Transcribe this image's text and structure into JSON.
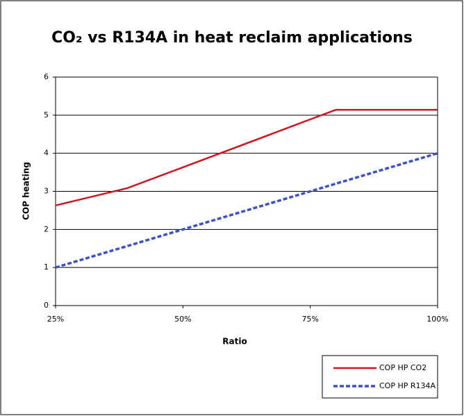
{
  "chart_data": {
    "type": "line",
    "title": "CO₂ vs R134A in heat reclaim applications",
    "x_label": "Ratio",
    "y_label": "COP heating",
    "x": [
      25,
      39,
      50,
      75,
      80,
      100
    ],
    "series": [
      {
        "name": "COP HP CO2",
        "color": "#d0141e",
        "dash": false,
        "values": [
          2.63,
          3.08,
          3.63,
          4.89,
          5.14,
          5.14
        ]
      },
      {
        "name": "COP HP R134A",
        "color": "#3c50c8",
        "dash": true,
        "values": [
          1,
          1.56,
          2,
          3,
          3.2,
          4
        ]
      }
    ],
    "xlim": [
      25,
      100
    ],
    "xticks": [
      {
        "value": 25,
        "label": "25%"
      },
      {
        "value": 50,
        "label": "50%"
      },
      {
        "value": 75,
        "label": "75%"
      },
      {
        "value": 100,
        "label": "100%"
      }
    ],
    "ylim": [
      0,
      6
    ],
    "yticks": [
      0,
      1,
      2,
      3,
      4,
      5,
      6
    ],
    "grid": true,
    "legend": "bottom-right"
  }
}
